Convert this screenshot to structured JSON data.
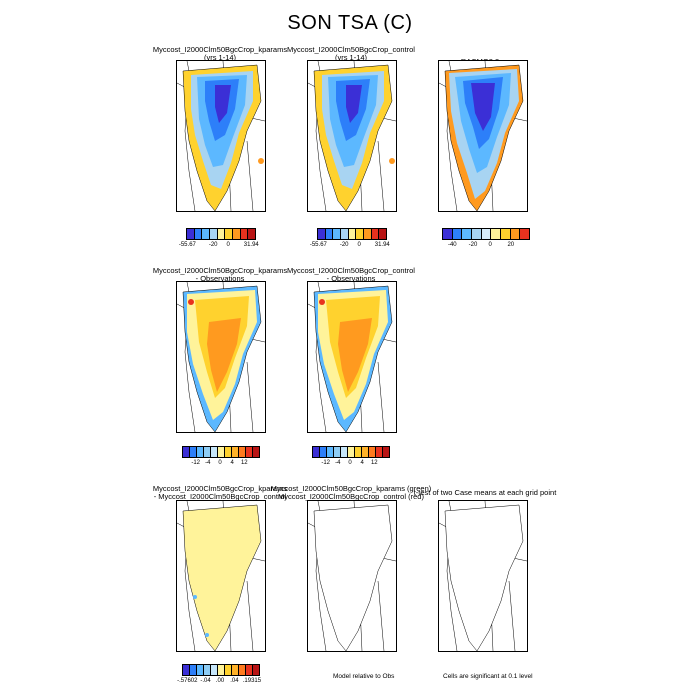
{
  "title": "SON TSA (C)",
  "panels": [
    {
      "line1": "Myccost_I2000Clm50BgcCrop_kparams",
      "line2": "(yrs 1-14)"
    },
    {
      "line1": "Myccost_I2000Clm50BgcCrop_control",
      "line2": "(yrs 1-14)"
    },
    {
      "line1": "RACMO2.3",
      "line2": ""
    },
    {
      "line1": "Myccost_I2000Clm50BgcCrop_kparams",
      "line2": "- Observations"
    },
    {
      "line1": "Myccost_I2000Clm50BgcCrop_control",
      "line2": "- Observations"
    },
    {
      "line1": "Myccost_I2000Clm50BgcCrop_kparams",
      "line2": "- Myccost_I2000Clm50BgcCrop_control"
    },
    {
      "line1": "Myccost_I2000Clm50BgcCrop_kparams (green)",
      "line2": "Myccost_I2000Clm50BgcCrop_control (red)"
    },
    {
      "line1": "t-test of two Case means at each grid point",
      "line2": ""
    }
  ],
  "colorbars": {
    "abs_model": {
      "labels": [
        "-55.67",
        "-20",
        "0",
        "31.94"
      ]
    },
    "abs_obs": {
      "labels": [
        "-40",
        "-20",
        "0",
        "20"
      ]
    },
    "diff": {
      "labels": [
        "-12",
        "-4",
        "0",
        "4",
        "12"
      ]
    },
    "case_diff": {
      "labels": [
        "-.57602",
        "-.04",
        ".00",
        ".04",
        ".19315"
      ]
    }
  },
  "notes": {
    "model_relative": "Model relative to Obs",
    "significance": "Cells are significant at 0.1 level"
  },
  "colors": {
    "deep_blue": "#3b2fd6",
    "mid_blue": "#2d7ff9",
    "light_blue": "#5cb8ff",
    "pale_blue": "#a8d4f2",
    "pale_yellow": "#fff39a",
    "yellow": "#ffd22e",
    "orange": "#ff9a1f",
    "red": "#e8321e"
  }
}
